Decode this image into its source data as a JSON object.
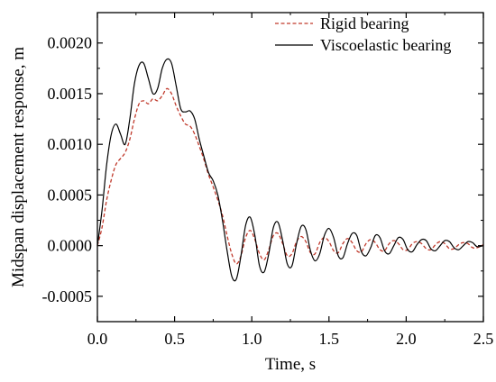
{
  "chart_data": {
    "type": "line",
    "title": "",
    "xlabel": "Time, s",
    "ylabel": "Midspan displacement response, m",
    "xlim": [
      0.0,
      2.5
    ],
    "ylim": [
      -0.00075,
      0.0023
    ],
    "xticks": [
      0.0,
      0.5,
      1.0,
      1.5,
      2.0,
      2.5
    ],
    "xtick_labels": [
      "0.0",
      "0.5",
      "1.0",
      "1.5",
      "2.0",
      "2.5"
    ],
    "yticks": [
      -0.0005,
      0.0,
      0.0005,
      0.001,
      0.0015,
      0.002
    ],
    "ytick_labels": [
      "-0.0005",
      "0.0000",
      "0.0005",
      "0.0010",
      "0.0015",
      "0.0020"
    ],
    "grid": false,
    "legend_position": "top-right",
    "series": [
      {
        "name": "Rigid bearing",
        "color": "#c0392b",
        "style": "dashed",
        "x": [
          0.0,
          0.03,
          0.06,
          0.09,
          0.12,
          0.15,
          0.18,
          0.21,
          0.24,
          0.27,
          0.3,
          0.33,
          0.36,
          0.39,
          0.42,
          0.45,
          0.48,
          0.51,
          0.54,
          0.57,
          0.6,
          0.63,
          0.66,
          0.69,
          0.72,
          0.75,
          0.78,
          0.81,
          0.84,
          0.87,
          0.9,
          0.93,
          0.96,
          0.99,
          1.02,
          1.05,
          1.08,
          1.11,
          1.14,
          1.17,
          1.2,
          1.23,
          1.26,
          1.29,
          1.32,
          1.35,
          1.38,
          1.41,
          1.44,
          1.47,
          1.5,
          1.53,
          1.56,
          1.59,
          1.62,
          1.65,
          1.68,
          1.71,
          1.74,
          1.77,
          1.8,
          1.83,
          1.86,
          1.89,
          1.92,
          1.95,
          1.98,
          2.01,
          2.04,
          2.07,
          2.1,
          2.13,
          2.16,
          2.19,
          2.22,
          2.25,
          2.28,
          2.31,
          2.34,
          2.37,
          2.4,
          2.43,
          2.46,
          2.5
        ],
        "y": [
          0.0,
          0.00018,
          0.00045,
          0.00065,
          0.0008,
          0.00086,
          0.00092,
          0.00105,
          0.00125,
          0.0014,
          0.00143,
          0.0014,
          0.00145,
          0.00143,
          0.00148,
          0.00155,
          0.0015,
          0.00138,
          0.00128,
          0.0012,
          0.00118,
          0.0011,
          0.00098,
          0.00085,
          0.0007,
          0.00058,
          0.00045,
          0.0003,
          0.0001,
          -8e-05,
          -0.00018,
          -0.0001,
          8e-05,
          0.00015,
          6e-05,
          -8e-05,
          -0.00014,
          -4e-05,
          0.0001,
          0.00012,
          2e-05,
          -0.0001,
          -8e-05,
          4e-05,
          9e-05,
          4e-05,
          -7e-05,
          -8e-05,
          3e-05,
          8e-05,
          4e-05,
          -5e-05,
          -7e-05,
          2e-05,
          7e-05,
          3e-05,
          -5e-05,
          -6e-05,
          2e-05,
          6e-05,
          3e-05,
          -4e-05,
          -5e-05,
          2e-05,
          5e-05,
          2e-05,
          -4e-05,
          -4e-05,
          2e-05,
          4e-05,
          2e-05,
          -3e-05,
          -4e-05,
          1e-05,
          4e-05,
          2e-05,
          -3e-05,
          -3e-05,
          1e-05,
          3e-05,
          2e-05,
          -2e-05,
          -2e-05,
          1e-05
        ]
      },
      {
        "name": "Viscoelastic bearing",
        "color": "#000000",
        "style": "solid",
        "x": [
          0.0,
          0.03,
          0.06,
          0.09,
          0.12,
          0.15,
          0.18,
          0.21,
          0.24,
          0.27,
          0.3,
          0.33,
          0.36,
          0.39,
          0.42,
          0.45,
          0.48,
          0.51,
          0.54,
          0.57,
          0.6,
          0.63,
          0.66,
          0.69,
          0.72,
          0.75,
          0.78,
          0.81,
          0.84,
          0.87,
          0.9,
          0.93,
          0.96,
          0.99,
          1.02,
          1.05,
          1.08,
          1.11,
          1.14,
          1.17,
          1.2,
          1.23,
          1.26,
          1.29,
          1.32,
          1.35,
          1.38,
          1.41,
          1.44,
          1.47,
          1.5,
          1.53,
          1.56,
          1.59,
          1.62,
          1.65,
          1.68,
          1.71,
          1.74,
          1.77,
          1.8,
          1.83,
          1.86,
          1.89,
          1.92,
          1.95,
          1.98,
          2.01,
          2.04,
          2.07,
          2.1,
          2.13,
          2.16,
          2.19,
          2.22,
          2.25,
          2.28,
          2.31,
          2.34,
          2.37,
          2.4,
          2.43,
          2.46,
          2.5
        ],
        "y": [
          0.0,
          0.00035,
          0.0008,
          0.0011,
          0.0012,
          0.0011,
          0.001,
          0.00125,
          0.0016,
          0.00178,
          0.0018,
          0.00165,
          0.0015,
          0.00155,
          0.00175,
          0.00184,
          0.0018,
          0.00158,
          0.00135,
          0.00132,
          0.00133,
          0.00125,
          0.00105,
          0.00088,
          0.00072,
          0.00064,
          0.0005,
          0.00025,
          -5e-05,
          -0.0003,
          -0.00033,
          -0.0001,
          0.0002,
          0.00028,
          0.0001,
          -0.0002,
          -0.00026,
          -8e-05,
          0.00018,
          0.00023,
          5e-05,
          -0.00018,
          -0.0002,
          2e-05,
          0.00019,
          0.00016,
          -5e-05,
          -0.00015,
          -8e-05,
          0.0001,
          0.00017,
          8e-05,
          -0.0001,
          -0.00012,
          2e-05,
          0.00012,
          0.0001,
          -6e-05,
          -0.0001,
          -2e-05,
          0.0001,
          8e-05,
          -5e-05,
          -8e-05,
          0.0,
          8e-05,
          6e-05,
          -4e-05,
          -6e-05,
          1e-05,
          6e-05,
          5e-05,
          -3e-05,
          -5e-05,
          0.0,
          5e-05,
          4e-05,
          -2e-05,
          -4e-05,
          0.0,
          4e-05,
          3e-05,
          -1e-05,
          0.0
        ]
      }
    ]
  }
}
